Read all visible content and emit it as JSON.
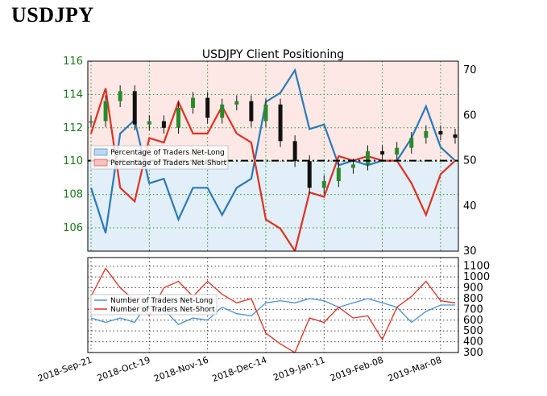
{
  "page": {
    "title": "USDJPY"
  },
  "chart_data": [
    {
      "type": "line",
      "title": "USDJPY Client Positioning",
      "x": [
        "2018-Sep-21",
        "2018-Sep-28",
        "2018-Oct-05",
        "2018-Oct-12",
        "2018-Oct-19",
        "2018-Oct-26",
        "2018-Nov-02",
        "2018-Nov-09",
        "2018-Nov-16",
        "2018-Nov-23",
        "2018-Nov-30",
        "2018-Dec-07",
        "2018-Dec-14",
        "2018-Dec-21",
        "2018-Dec-28",
        "2019-Jan-04",
        "2019-Jan-11",
        "2019-Jan-18",
        "2019-Jan-25",
        "2019-Feb-01",
        "2019-Feb-08",
        "2019-Feb-15",
        "2019-Feb-22",
        "2019-Mar-01",
        "2019-Mar-08",
        "2019-Mar-15"
      ],
      "x_tick_labels": [
        "2018-Sep-21",
        "2018-Oct-19",
        "2018-Nov-16",
        "2018-Dec-14",
        "2019-Jan-11",
        "2019-Feb-08",
        "2019-Mar-08"
      ],
      "price_axis": {
        "ylim": [
          104.6,
          116
        ],
        "ticks": [
          "106",
          "108",
          "110",
          "112",
          "114",
          "116"
        ]
      },
      "percent_axis": {
        "ylim": [
          30,
          72
        ],
        "ticks": [
          "30",
          "40",
          "50",
          "60",
          "70"
        ]
      },
      "reference_line": 50,
      "price": [
        112.4,
        113.6,
        114.2,
        112.2,
        112.4,
        112.0,
        113.2,
        113.8,
        112.6,
        113.4,
        113.6,
        112.4,
        113.4,
        111.2,
        110.0,
        108.4,
        108.8,
        109.6,
        109.8,
        110.6,
        110.4,
        110.8,
        111.4,
        111.8,
        111.6,
        111.4
      ],
      "series": [
        {
          "name": "Percentage of Traders Net-Long",
          "color": "#2a7ab8",
          "values": [
            44,
            34,
            56,
            59,
            45,
            46,
            37,
            44,
            44,
            38,
            44,
            46,
            63,
            65,
            70,
            57,
            58,
            49,
            50,
            49,
            50,
            50,
            55,
            62,
            53,
            50
          ]
        },
        {
          "name": "Percentage of Traders Net-Short",
          "color": "#e03020",
          "values": [
            56,
            66,
            44,
            41,
            55,
            54,
            63,
            56,
            56,
            62,
            56,
            54,
            37,
            35,
            30,
            43,
            42,
            51,
            50,
            51,
            50,
            50,
            45,
            38,
            47,
            50
          ]
        }
      ],
      "legend": [
        "Percentage of Traders Net-Long",
        "Percentage of Traders Net-Short"
      ],
      "legend_position": "center-left"
    },
    {
      "type": "line",
      "ylim": [
        300,
        1180
      ],
      "y_ticks": [
        "300",
        "400",
        "500",
        "600",
        "700",
        "800",
        "900",
        "1000",
        "1100"
      ],
      "series": [
        {
          "name": "Number of Traders Net-Long",
          "color": "#4a90d9",
          "values": [
            620,
            580,
            620,
            580,
            780,
            700,
            560,
            620,
            600,
            720,
            660,
            640,
            760,
            780,
            760,
            800,
            780,
            720,
            760,
            800,
            760,
            720,
            580,
            680,
            740,
            740
          ]
        },
        {
          "name": "Number of Traders Net-Short",
          "color": "#e03020",
          "values": [
            820,
            1080,
            900,
            780,
            640,
            900,
            960,
            820,
            960,
            840,
            760,
            800,
            480,
            380,
            300,
            620,
            580,
            720,
            620,
            640,
            420,
            720,
            820,
            960,
            780,
            760
          ]
        }
      ],
      "legend": [
        "Number of Traders Net-Long",
        "Number of Traders Net-Short"
      ],
      "legend_position": "top-left",
      "grid": true
    }
  ]
}
